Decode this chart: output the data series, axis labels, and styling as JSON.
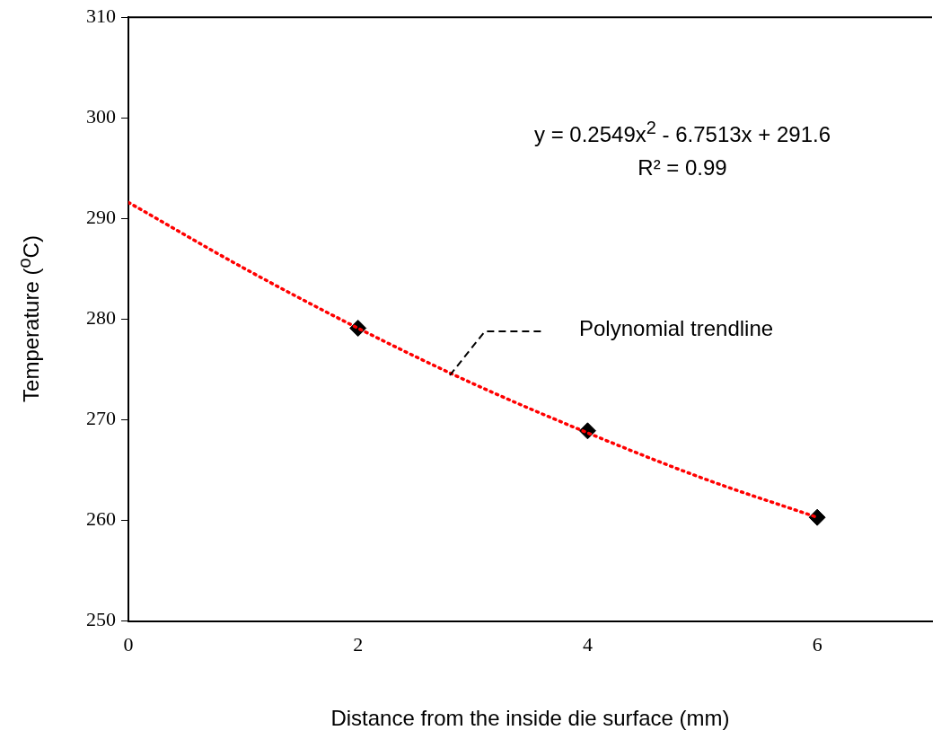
{
  "chart_data": {
    "type": "scatter",
    "xlabel": "Distance from the inside die surface (mm)",
    "ylabel": "Temperature ($^{o}$C)",
    "xlim": [
      0,
      7
    ],
    "xticks": [
      0,
      2,
      4,
      6
    ],
    "ylim": [
      250,
      310
    ],
    "yticks": [
      250,
      260,
      270,
      280,
      290,
      300,
      310
    ],
    "grid": false,
    "legend": false,
    "annotations": [
      "y = 0.2549x$^{2}$ - 6.7513x + 291.6",
      "R² = 0.99",
      "Polynomial trendline"
    ],
    "series": [
      {
        "type": "line",
        "color": "#ff0000",
        "line_style": "dotted",
        "marker": "none",
        "x": [
          0,
          1,
          2,
          3,
          4,
          5,
          6
        ],
        "values": [
          291.6,
          285.1,
          279.1,
          273.6,
          268.7,
          264.2,
          260.3
        ]
      },
      {
        "color": "#000000",
        "marker": "diamond",
        "x": [
          2,
          4,
          6
        ],
        "values": [
          279.1,
          268.9,
          260.3
        ]
      }
    ]
  }
}
